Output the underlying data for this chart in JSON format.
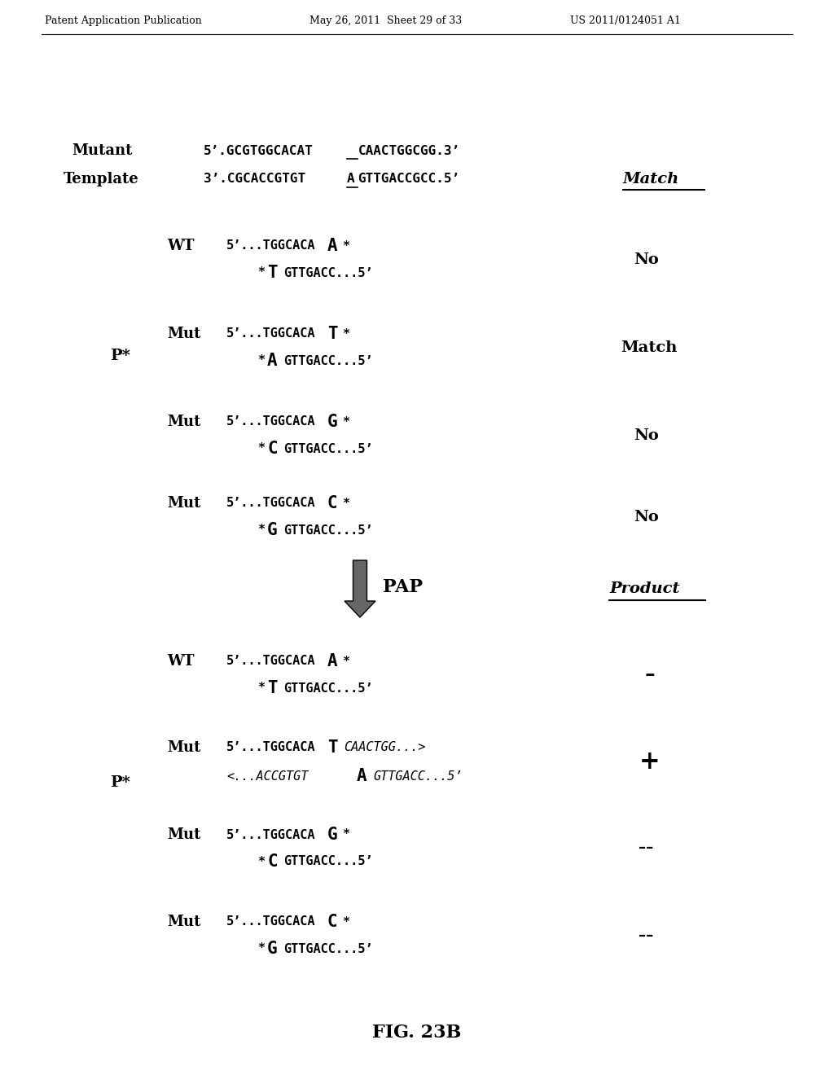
{
  "bg_color": "#ffffff",
  "header_left": "Patent Application Publication",
  "header_mid": "May 26, 2011  Sheet 29 of 33",
  "header_right": "US 2011/0124051 A1",
  "figure_label": "FIG. 23B"
}
